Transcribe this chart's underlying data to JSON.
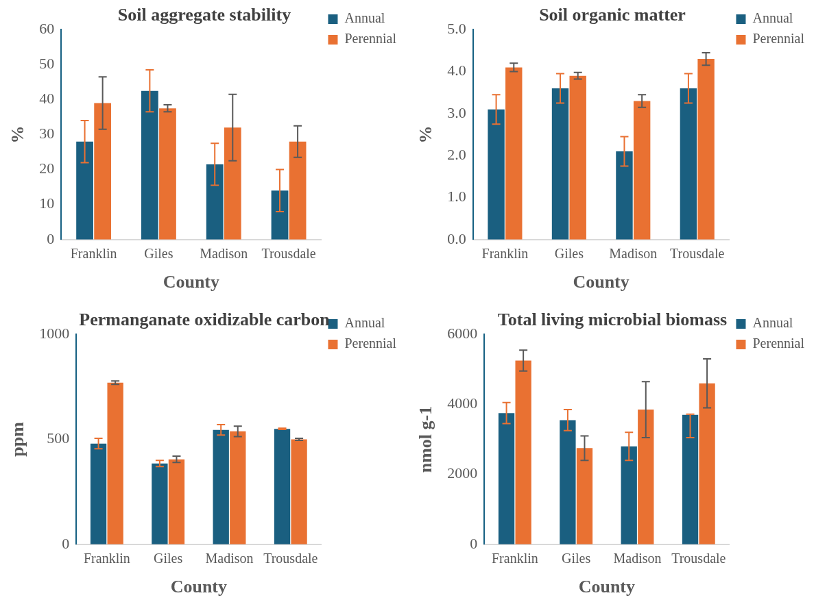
{
  "chart_data": [
    {
      "type": "bar",
      "title": "Soil aggregate stability",
      "xlabel": "County",
      "ylabel": "%",
      "categories": [
        "Franklin",
        "Giles",
        "Madison",
        "Trousdale"
      ],
      "ylim": [
        0,
        60
      ],
      "yticks": [
        0,
        10,
        20,
        30,
        40,
        50,
        60
      ],
      "grid": false,
      "legend": "top right",
      "series": [
        {
          "name": "Annual",
          "color": "#1a5f80",
          "values": [
            28,
            42.5,
            21.5,
            14
          ],
          "errors": [
            6,
            6,
            6,
            6
          ]
        },
        {
          "name": "Perennial",
          "color": "#e97132",
          "values": [
            39,
            37.5,
            32,
            28
          ],
          "errors": [
            7.5,
            1,
            9.5,
            4.5
          ]
        }
      ]
    },
    {
      "type": "bar",
      "title": "Soil organic matter",
      "xlabel": "County",
      "ylabel": "%",
      "categories": [
        "Franklin",
        "Giles",
        "Madison",
        "Trousdale"
      ],
      "ylim": [
        0,
        5
      ],
      "yticks": [
        {
          "value": 0,
          "label": "0.0"
        },
        {
          "value": 1,
          "label": "1.0"
        },
        {
          "value": 2,
          "label": "2.0"
        },
        {
          "value": 3,
          "label": "3.0"
        },
        {
          "value": 4,
          "label": "4.0"
        },
        {
          "value": 5,
          "label": "5.0"
        }
      ],
      "grid": false,
      "legend": "top right",
      "series": [
        {
          "name": "Annual",
          "color": "#1a5f80",
          "values": [
            3.1,
            3.6,
            2.1,
            3.6
          ],
          "errors": [
            0.35,
            0.35,
            0.35,
            0.35
          ]
        },
        {
          "name": "Perennial",
          "color": "#e97132",
          "values": [
            4.1,
            3.9,
            3.3,
            4.3
          ],
          "errors": [
            0.1,
            0.08,
            0.15,
            0.15
          ]
        }
      ]
    },
    {
      "type": "bar",
      "title": "Permanganate oxidizable carbon",
      "xlabel": "County",
      "ylabel": "ppm",
      "categories": [
        "Franklin",
        "Giles",
        "Madison",
        "Trousdale"
      ],
      "ylim": [
        0,
        1000
      ],
      "yticks": [
        0,
        500,
        1000
      ],
      "grid": false,
      "legend": "top right",
      "series": [
        {
          "name": "Annual",
          "color": "#1a5f80",
          "values": [
            480,
            385,
            545,
            550
          ],
          "errors": [
            25,
            15,
            25,
            3
          ]
        },
        {
          "name": "Perennial",
          "color": "#e97132",
          "values": [
            770,
            405,
            538,
            500
          ],
          "errors": [
            8,
            15,
            25,
            5
          ]
        }
      ]
    },
    {
      "type": "bar",
      "title": "Total living microbial biomass",
      "xlabel": "County",
      "ylabel": "nmol g-1",
      "categories": [
        "Franklin",
        "Giles",
        "Madison",
        "Trousdale"
      ],
      "ylim": [
        0,
        6000
      ],
      "yticks": [
        0,
        2000,
        4000,
        6000
      ],
      "grid": false,
      "legend": "top right",
      "series": [
        {
          "name": "Annual",
          "color": "#1a5f80",
          "values": [
            3750,
            3550,
            2800,
            3700
          ],
          "errors": [
            300,
            300,
            400,
            [
              3050,
              3720
            ]
          ]
        },
        {
          "name": "Perennial",
          "color": "#e97132",
          "values": [
            5250,
            2750,
            3850,
            4600
          ],
          "errors": [
            300,
            350,
            800,
            700
          ]
        }
      ]
    }
  ]
}
